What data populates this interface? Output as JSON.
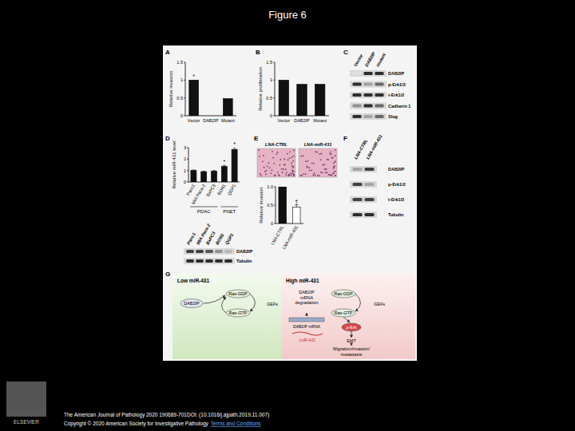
{
  "header": {
    "title": "Figure 6"
  },
  "chart_data": [
    {
      "type": "bar",
      "panel": "A",
      "y_label": "Relative invasion",
      "categories": [
        "Vector",
        "DAB2IP",
        "Mutant"
      ],
      "values": [
        1,
        0,
        0.48
      ],
      "annotations": [
        "*",
        null,
        null
      ],
      "color": "#111111",
      "ylim": [
        0,
        1.5
      ],
      "yticks": [
        0,
        0.5,
        1,
        1.5
      ],
      "grid": false
    },
    {
      "type": "bar",
      "panel": "B",
      "y_label": "Relative proliferation",
      "categories": [
        "Vector",
        "DAB2IP",
        "Mutant"
      ],
      "values": [
        1,
        0.88,
        0.88
      ],
      "color": "#111111",
      "ylim": [
        0,
        1.5
      ],
      "yticks": [
        0,
        0.5,
        1,
        1.5
      ],
      "grid": false
    },
    {
      "type": "bar",
      "panel": "D",
      "y_label": "Relative miR-431 level",
      "categories": [
        "Panc1",
        "MIA Paca-2",
        "BxPC3",
        "BON1",
        "QGP1"
      ],
      "values": [
        1,
        0.9,
        0.95,
        1.35,
        2.85
      ],
      "errors": [
        0.05,
        0.05,
        0.05,
        0.1,
        0.15
      ],
      "annotations": [
        null,
        null,
        null,
        "*",
        "*"
      ],
      "group_labels": [
        "PDAC",
        "PDAC",
        "PDAC",
        "PNET",
        "PNET"
      ],
      "color": "#111111",
      "ylim": [
        0,
        3
      ],
      "yticks": [
        0,
        1,
        2,
        3
      ],
      "grid": false
    },
    {
      "type": "bar",
      "y_label": "Relative invasion",
      "categories": [
        "LNA-CTRL",
        "LNA-miR-431"
      ],
      "values": [
        1,
        0.45
      ],
      "errors": [
        0,
        0.06
      ],
      "annotations": [
        null,
        "†"
      ],
      "colors": [
        "#111111",
        "#ffffff"
      ],
      "ylim": [
        0,
        1
      ],
      "yticks": [
        0,
        0.5,
        {
          "value": 1,
          "label": "1.0"
        }
      ],
      "grid": false
    }
  ],
  "micrographs": {
    "panel": "E",
    "labels": [
      "LNA-CTRL",
      "LNA-miR-431"
    ]
  },
  "blots": [
    {
      "panel": "C",
      "columns": [
        "Vector",
        "DAB2IP",
        "mutant"
      ],
      "rows": [
        {
          "label": "DAB2IP",
          "intensity": [
            0,
            0.9,
            0.9
          ]
        },
        {
          "label": "p-Erk1/2",
          "intensity": [
            0.9,
            0.3,
            0.6
          ]
        },
        {
          "label": "t-Erk1/2",
          "intensity": [
            0.9,
            0.9,
            0.9
          ]
        },
        {
          "label": "Cadherin 1",
          "intensity": [
            0.4,
            0.9,
            0.6
          ]
        },
        {
          "label": "Slug",
          "intensity": [
            0.9,
            0.3,
            0.6
          ]
        }
      ]
    },
    {
      "columns": [
        "Panc1",
        "MIA Paca-2",
        "BxPC3",
        "BON1",
        "QGP1"
      ],
      "rows": [
        {
          "label": "DAB2IP",
          "intensity": [
            0.8,
            0.8,
            0.7,
            0.4,
            0.2
          ]
        },
        {
          "label": "Tubulin",
          "intensity": [
            0.9,
            0.9,
            0.9,
            0.9,
            0.9
          ]
        }
      ]
    },
    {
      "panel": "F",
      "columns": [
        "LNA-CTRL",
        "LNA-miR-431"
      ],
      "rows": [
        {
          "label": "DAB2IP",
          "intensity": [
            0.3,
            0.8
          ]
        },
        {
          "label": "p-Erk1/2",
          "intensity": [
            0.8,
            0.3
          ]
        },
        {
          "label": "t-Erk1/2",
          "intensity": [
            0.8,
            0.8
          ]
        },
        {
          "label": "Tubulin",
          "intensity": [
            0.9,
            0.9
          ]
        }
      ]
    }
  ],
  "diagram": {
    "panel": "G",
    "left": {
      "title": "Low miR-431",
      "nodes": [
        "DAB2IP",
        "Ras-GDP",
        "Ras-GTP",
        "GEFs"
      ]
    },
    "right": {
      "title": "High miR-431",
      "nodes": [
        "DAB2IP mRNA degradation",
        "Ras-GDP",
        "Ras-GTP",
        "GEFs",
        "DAB2IP mRNA",
        "miR-431",
        "p-Erk",
        "EMT",
        "Migration/invasion/ metastasis"
      ]
    }
  },
  "footer": {
    "citation": "The American Journal of Pathology 2020 190689-701DOI: (10.1016/j.ajpath.2019.11.007)",
    "copyright": "Copyright © 2020 American Society for Investigative Pathology",
    "link": "Terms and Conditions",
    "logo": "ELSEVIER"
  }
}
